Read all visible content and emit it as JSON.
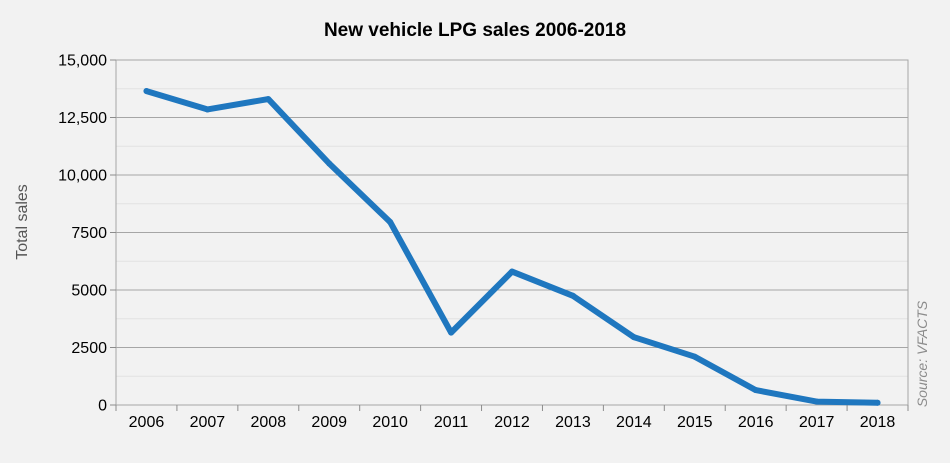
{
  "chart_data": {
    "type": "line",
    "title": "New vehicle LPG sales 2006-2018",
    "xlabel": "",
    "ylabel": "Total sales",
    "source": "Source: VFACTS",
    "categories": [
      "2006",
      "2007",
      "2008",
      "2009",
      "2010",
      "2011",
      "2012",
      "2013",
      "2014",
      "2015",
      "2016",
      "2017",
      "2018"
    ],
    "series": [
      {
        "values": [
          13650,
          12850,
          13300,
          10500,
          7950,
          3150,
          5800,
          4750,
          2950,
          2100,
          650,
          150,
          100
        ]
      }
    ],
    "ylim": [
      0,
      15000
    ],
    "yticks": [
      0,
      2500,
      5000,
      7500,
      10000,
      12500,
      15000
    ],
    "ytick_labels": [
      "0",
      "2500",
      "5000",
      "7500",
      "10,000",
      "12,500",
      "15,000"
    ],
    "grid": true,
    "line_color": "#1f77bf"
  }
}
